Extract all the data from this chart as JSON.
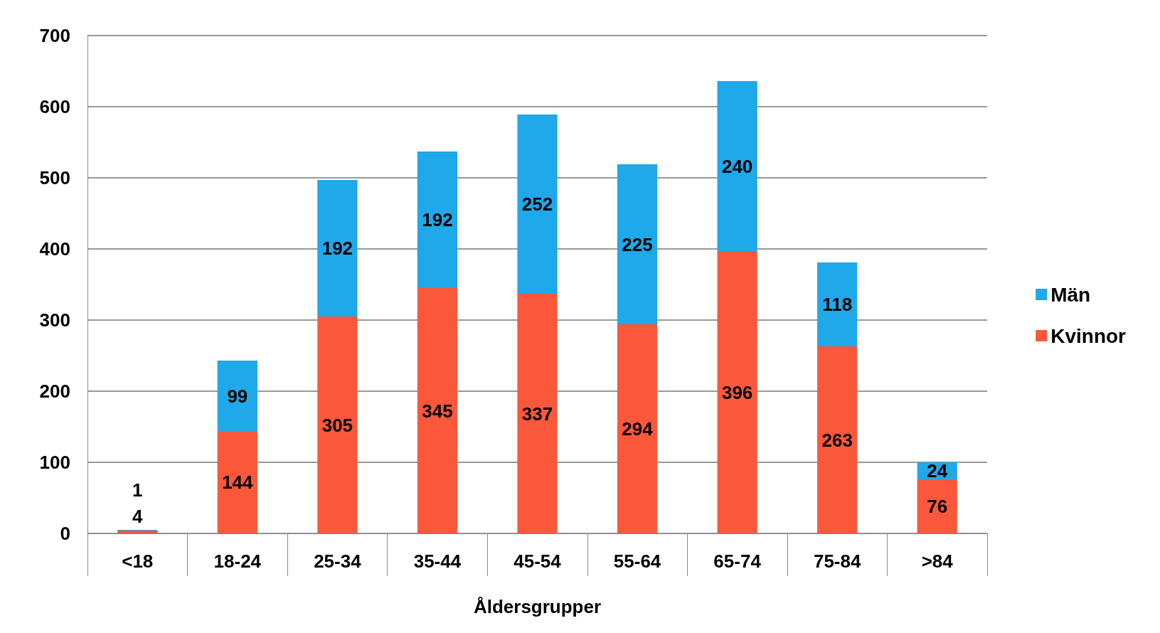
{
  "chart_data": {
    "type": "bar",
    "xlabel": "Åldersgrupper",
    "categories": [
      "<18",
      "18-24",
      "25-34",
      "35-44",
      "45-54",
      "55-64",
      "65-74",
      "75-84",
      ">84"
    ],
    "series": [
      {
        "name": "Kvinnor",
        "color": "#fb573a",
        "values": [
          4,
          144,
          305,
          345,
          337,
          294,
          396,
          263,
          76
        ]
      },
      {
        "name": "Män",
        "color": "#1fa8ea",
        "values": [
          1,
          99,
          192,
          192,
          252,
          225,
          240,
          118,
          24
        ]
      }
    ],
    "stacked": true,
    "data_labels": true,
    "ylim": [
      0,
      700
    ],
    "yticks": [
      0,
      100,
      200,
      300,
      400,
      500,
      600,
      700
    ],
    "grid": "y",
    "legend": "right"
  }
}
